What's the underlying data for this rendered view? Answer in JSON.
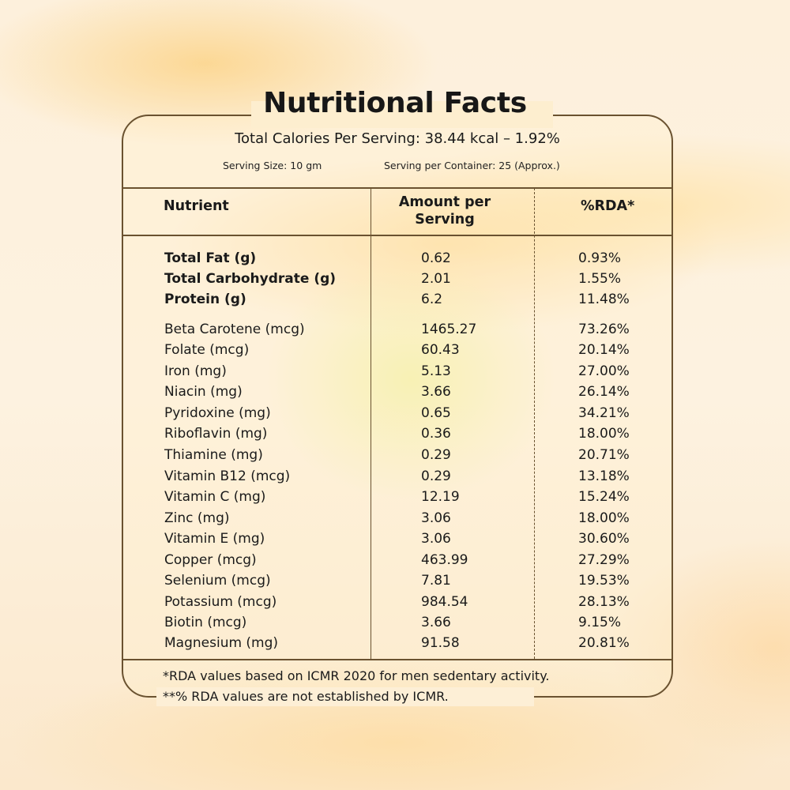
{
  "title": "Nutritional Facts",
  "calories": "Total Calories Per Serving: 38.44 kcal – 1.92%",
  "serving_size": "Serving Size: 10 gm",
  "serving_per_container": "Serving per Container: 25 (Approx.)",
  "headers": {
    "nutrient": "Nutrient",
    "amount_line1": "Amount per",
    "amount_line2": "Serving",
    "rda": "%RDA*"
  },
  "macros": [
    {
      "nutrient": "Total Fat (g)",
      "amount": "0.62",
      "rda": "0.93%"
    },
    {
      "nutrient": "Total Carbohydrate (g)",
      "amount": "2.01",
      "rda": "1.55%"
    },
    {
      "nutrient": "Protein (g)",
      "amount": "6.2",
      "rda": "11.48%"
    }
  ],
  "micros": [
    {
      "nutrient": "Beta Carotene (mcg)",
      "amount": "1465.27",
      "rda": "73.26%"
    },
    {
      "nutrient": "Folate (mcg)",
      "amount": "60.43",
      "rda": "20.14%"
    },
    {
      "nutrient": "Iron (mg)",
      "amount": "5.13",
      "rda": "27.00%"
    },
    {
      "nutrient": "Niacin (mg)",
      "amount": "3.66",
      "rda": "26.14%"
    },
    {
      "nutrient": "Pyridoxine (mg)",
      "amount": "0.65",
      "rda": "34.21%"
    },
    {
      "nutrient": "Riboflavin (mg)",
      "amount": "0.36",
      "rda": "18.00%"
    },
    {
      "nutrient": "Thiamine (mg)",
      "amount": "0.29",
      "rda": "20.71%"
    },
    {
      "nutrient": "Vitamin B12 (mcg)",
      "amount": "0.29",
      "rda": "13.18%"
    },
    {
      "nutrient": "Vitamin C (mg)",
      "amount": "12.19",
      "rda": "15.24%"
    },
    {
      "nutrient": "Zinc (mg)",
      "amount": "3.06",
      "rda": "18.00%"
    },
    {
      "nutrient": "Vitamin E (mg)",
      "amount": "3.06",
      "rda": "30.60%"
    },
    {
      "nutrient": "Copper (mcg)",
      "amount": "463.99",
      "rda": "27.29%"
    },
    {
      "nutrient": "Selenium (mcg)",
      "amount": "7.81",
      "rda": "19.53%"
    },
    {
      "nutrient": "Potassium (mcg)",
      "amount": "984.54",
      "rda": "28.13%"
    },
    {
      "nutrient": "Biotin (mcg)",
      "amount": "3.66",
      "rda": "9.15%"
    },
    {
      "nutrient": "Magnesium (mg)",
      "amount": "91.58",
      "rda": "20.81%"
    }
  ],
  "footnotes": [
    "*RDA values based on ICMR 2020 for men sedentary activity.",
    "**% RDA values are not established by ICMR."
  ]
}
